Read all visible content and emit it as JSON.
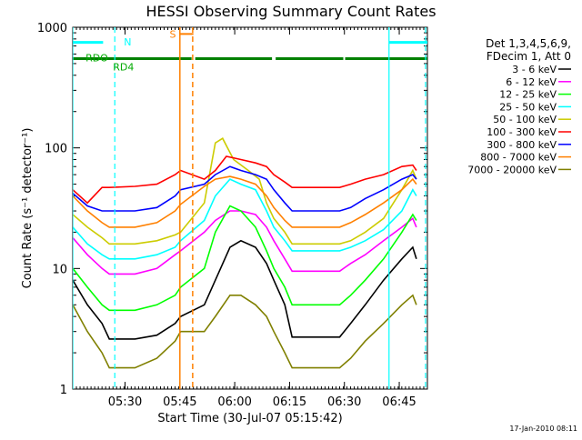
{
  "chart_data": {
    "type": "line",
    "title": "HESSI Observing Summary Count Rates",
    "xlabel": "Start Time (30-Jul-07 05:15:42)",
    "ylabel": "Count Rate (s⁻¹ detector⁻¹)",
    "x_range_minutes": [
      0,
      97
    ],
    "y_scale": "log",
    "ylim": [
      1,
      1000
    ],
    "grid": false,
    "legend_position": "right",
    "x_ticks": [
      {
        "minute": 14.3,
        "label": "05:30"
      },
      {
        "minute": 29.3,
        "label": "05:45"
      },
      {
        "minute": 44.3,
        "label": "06:00"
      },
      {
        "minute": 59.3,
        "label": "06:15"
      },
      {
        "minute": 74.3,
        "label": "06:30"
      },
      {
        "minute": 89.3,
        "label": "06:45"
      }
    ],
    "y_ticks": [
      {
        "value": 1,
        "label": "1"
      },
      {
        "value": 10,
        "label": "10"
      },
      {
        "value": 100,
        "label": "100"
      },
      {
        "value": 1000,
        "label": "1000"
      }
    ],
    "legend_header": [
      "Det 1,3,4,5,6,9,",
      "FDecim 1, Att 0"
    ],
    "series": [
      {
        "name": "3 - 6 keV",
        "color": "#000000",
        "x": [
          0,
          4,
          8,
          10,
          17,
          23,
          28,
          29.5,
          32,
          36,
          39,
          43,
          46,
          50,
          53,
          55,
          58,
          60,
          70,
          73,
          76,
          80,
          85,
          90,
          93,
          94
        ],
        "y": [
          8,
          5,
          3.5,
          2.6,
          2.6,
          2.8,
          3.5,
          4,
          4.5,
          5,
          8,
          15,
          17,
          15,
          11,
          8,
          5,
          2.7,
          2.7,
          2.7,
          3.5,
          5,
          8,
          12,
          15,
          12
        ]
      },
      {
        "name": "6 - 12 keV",
        "color": "#ff00ff",
        "x": [
          0,
          4,
          8,
          10,
          17,
          23,
          28,
          29.5,
          32,
          36,
          39,
          43,
          46,
          50,
          53,
          55,
          58,
          60,
          70,
          73,
          76,
          80,
          85,
          90,
          93,
          94
        ],
        "y": [
          18,
          13,
          10,
          9,
          9,
          10,
          13,
          14,
          17,
          20,
          25,
          30,
          30,
          28,
          22,
          17,
          12,
          9.5,
          9.5,
          9.5,
          11,
          13,
          17,
          22,
          26,
          22
        ]
      },
      {
        "name": "12 - 25 keV",
        "color": "#00ff00",
        "x": [
          0,
          4,
          8,
          10,
          17,
          23,
          28,
          29.5,
          32,
          36,
          39,
          43,
          46,
          50,
          53,
          55,
          58,
          60,
          70,
          73,
          76,
          80,
          85,
          90,
          93,
          94
        ],
        "y": [
          10,
          7,
          5,
          4.5,
          4.5,
          5,
          6,
          7,
          8,
          10,
          20,
          33,
          30,
          22,
          14,
          10,
          7,
          5,
          5,
          5,
          6,
          8,
          12,
          20,
          28,
          25
        ]
      },
      {
        "name": "25 - 50 keV",
        "color": "#00ffff",
        "x": [
          0,
          4,
          8,
          10,
          17,
          23,
          28,
          29.5,
          32,
          36,
          39,
          43,
          46,
          50,
          53,
          55,
          58,
          60,
          70,
          73,
          76,
          80,
          85,
          90,
          93,
          94
        ],
        "y": [
          22,
          16,
          13,
          12,
          12,
          13,
          15,
          17,
          20,
          25,
          40,
          55,
          50,
          45,
          30,
          22,
          17,
          14,
          14,
          14,
          15,
          17,
          21,
          30,
          45,
          40
        ]
      },
      {
        "name": "50 - 100 keV",
        "color": "#cccc00",
        "x": [
          0,
          4,
          8,
          10,
          17,
          23,
          28,
          29.5,
          32,
          36,
          39,
          41,
          44,
          48,
          51,
          53,
          55,
          58,
          60,
          70,
          73,
          76,
          80,
          85,
          90,
          93,
          94
        ],
        "y": [
          28,
          22,
          18,
          16,
          16,
          17,
          19,
          20,
          25,
          35,
          110,
          120,
          80,
          65,
          55,
          35,
          26,
          20,
          16,
          16,
          16,
          17,
          20,
          26,
          45,
          65,
          55
        ]
      },
      {
        "name": "100 - 300 keV",
        "color": "#ff0000",
        "x": [
          0,
          4,
          8,
          10,
          17,
          23,
          28,
          29.5,
          32,
          36,
          39,
          42,
          46,
          50,
          53,
          55,
          58,
          60,
          70,
          73,
          76,
          80,
          85,
          90,
          93,
          94
        ],
        "y": [
          45,
          35,
          47,
          47,
          48,
          50,
          60,
          65,
          47,
          55,
          65,
          85,
          80,
          75,
          70,
          60,
          52,
          47,
          47,
          47,
          50,
          55,
          60,
          70,
          72,
          65
        ]
      },
      {
        "name": "300 - 800 keV",
        "color": "#0000ff",
        "x": [
          0,
          4,
          8,
          10,
          17,
          23,
          28,
          29.5,
          32,
          36,
          39,
          43,
          46,
          50,
          53,
          55,
          58,
          60,
          70,
          73,
          76,
          80,
          85,
          90,
          93,
          94
        ],
        "y": [
          42,
          33,
          30,
          30,
          30,
          32,
          40,
          45,
          45,
          50,
          60,
          70,
          65,
          60,
          55,
          45,
          35,
          30,
          30,
          30,
          32,
          38,
          45,
          55,
          60,
          55
        ]
      },
      {
        "name": "800 - 7000 keV",
        "color": "#ff8000",
        "x": [
          0,
          4,
          8,
          10,
          17,
          23,
          28,
          29.5,
          32,
          36,
          39,
          43,
          46,
          50,
          53,
          55,
          58,
          60,
          70,
          73,
          76,
          80,
          85,
          90,
          93,
          94
        ],
        "y": [
          40,
          30,
          24,
          22,
          22,
          24,
          30,
          34,
          42,
          48,
          55,
          58,
          55,
          50,
          40,
          32,
          25,
          22,
          22,
          22,
          24,
          28,
          35,
          45,
          55,
          50
        ]
      },
      {
        "name": "7000 - 20000 keV",
        "color": "#808000",
        "x": [
          0,
          4,
          8,
          10,
          17,
          23,
          28,
          29.5,
          32,
          36,
          39,
          43,
          46,
          50,
          53,
          55,
          58,
          60,
          70,
          73,
          76,
          80,
          85,
          90,
          93,
          94
        ],
        "y": [
          5,
          3,
          2,
          1.5,
          1.5,
          1.8,
          2.5,
          3,
          2.5,
          3,
          4,
          6,
          6,
          5,
          4,
          3,
          2,
          1.5,
          1.5,
          1.5,
          1.8,
          2.5,
          3.5,
          5,
          6,
          5
        ]
      }
    ],
    "annotations": {
      "cyan_level": 750,
      "green_level": 550,
      "orange_level": 880,
      "cyan_segments": [
        [
          0,
          8.3
        ],
        [
          86.5,
          97
        ]
      ],
      "green_segments": [
        [
          0,
          32.5
        ],
        [
          33.5,
          54.5
        ],
        [
          55.5,
          74
        ],
        [
          74.5,
          97
        ]
      ],
      "orange_segments": [
        [
          29.3,
          33
        ]
      ],
      "cyan_solid_lines": [
        0,
        86.5
      ],
      "cyan_dashed_lines": [
        11.5,
        96.5
      ],
      "orange_solid_lines": [
        29.3
      ],
      "orange_dashed_lines": [
        32.8
      ],
      "labels": [
        {
          "text": "RDO",
          "color": "#00aa00",
          "minute": 3.5,
          "level": 560
        },
        {
          "text": "RD4",
          "color": "#00aa00",
          "minute": 11,
          "level": 470
        },
        {
          "text": "N",
          "color": "#00ffff",
          "minute": 14,
          "level": 760
        },
        {
          "text": "S",
          "color": "#ff8000",
          "minute": 26.5,
          "level": 880
        }
      ]
    }
  },
  "footer_date": "17-Jan-2010 08:11"
}
